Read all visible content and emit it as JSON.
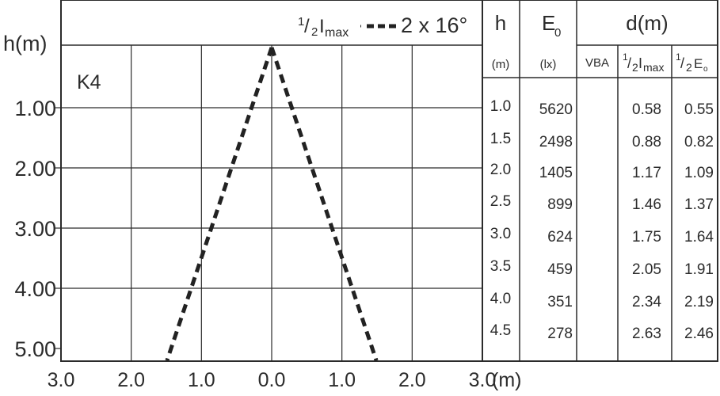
{
  "chart_data": {
    "type": "line",
    "label": "K4",
    "legend": {
      "sub_half": "1",
      "sub_two": "2",
      "main": "I",
      "sub_max": "max",
      "beam": "2 x 16°"
    },
    "ylabel": "h(m)",
    "xlabel_unit": "(m)",
    "x_ticks": [
      "3.0",
      "2.0",
      "1.0",
      "0.0",
      "1.0",
      "2.0",
      "3.0"
    ],
    "y_ticks": [
      "1.00",
      "2.00",
      "3.00",
      "4.00",
      "5.00"
    ],
    "xlim": [
      -3,
      3
    ],
    "ylim": [
      0,
      5
    ],
    "series": [
      {
        "values": [
          {
            "x": 0,
            "y": 0
          },
          {
            "x": -1.49,
            "y": 5.2
          }
        ]
      },
      {
        "values": [
          {
            "x": 0,
            "y": 0
          },
          {
            "x": 1.49,
            "y": 5.2
          }
        ]
      }
    ],
    "table": {
      "headers": {
        "h": "h",
        "e0": "E",
        "e0_sub": "0",
        "d": "d(m)"
      },
      "units": {
        "h": "(m)",
        "e0": "(lx)",
        "vba": "VBA",
        "half_imax": "I",
        "half_imax_sub": "max",
        "half_e0": "E",
        "half_e0_sub": "o",
        "half_num": "1",
        "half_den": "2"
      },
      "rows": [
        {
          "h": "1.0",
          "e0": "5620",
          "vba": "",
          "d_imax": "0.58",
          "d_e0": "0.55"
        },
        {
          "h": "1.5",
          "e0": "2498",
          "vba": "",
          "d_imax": "0.88",
          "d_e0": "0.82"
        },
        {
          "h": "2.0",
          "e0": "1405",
          "vba": "",
          "d_imax": "1.17",
          "d_e0": "1.09"
        },
        {
          "h": "2.5",
          "e0": "899",
          "vba": "",
          "d_imax": "1.46",
          "d_e0": "1.37"
        },
        {
          "h": "3.0",
          "e0": "624",
          "vba": "",
          "d_imax": "1.75",
          "d_e0": "1.64"
        },
        {
          "h": "3.5",
          "e0": "459",
          "vba": "",
          "d_imax": "2.05",
          "d_e0": "1.91"
        },
        {
          "h": "4.0",
          "e0": "351",
          "vba": "",
          "d_imax": "2.34",
          "d_e0": "2.19"
        },
        {
          "h": "4.5",
          "e0": "278",
          "vba": "",
          "d_imax": "2.63",
          "d_e0": "2.46"
        }
      ]
    }
  }
}
